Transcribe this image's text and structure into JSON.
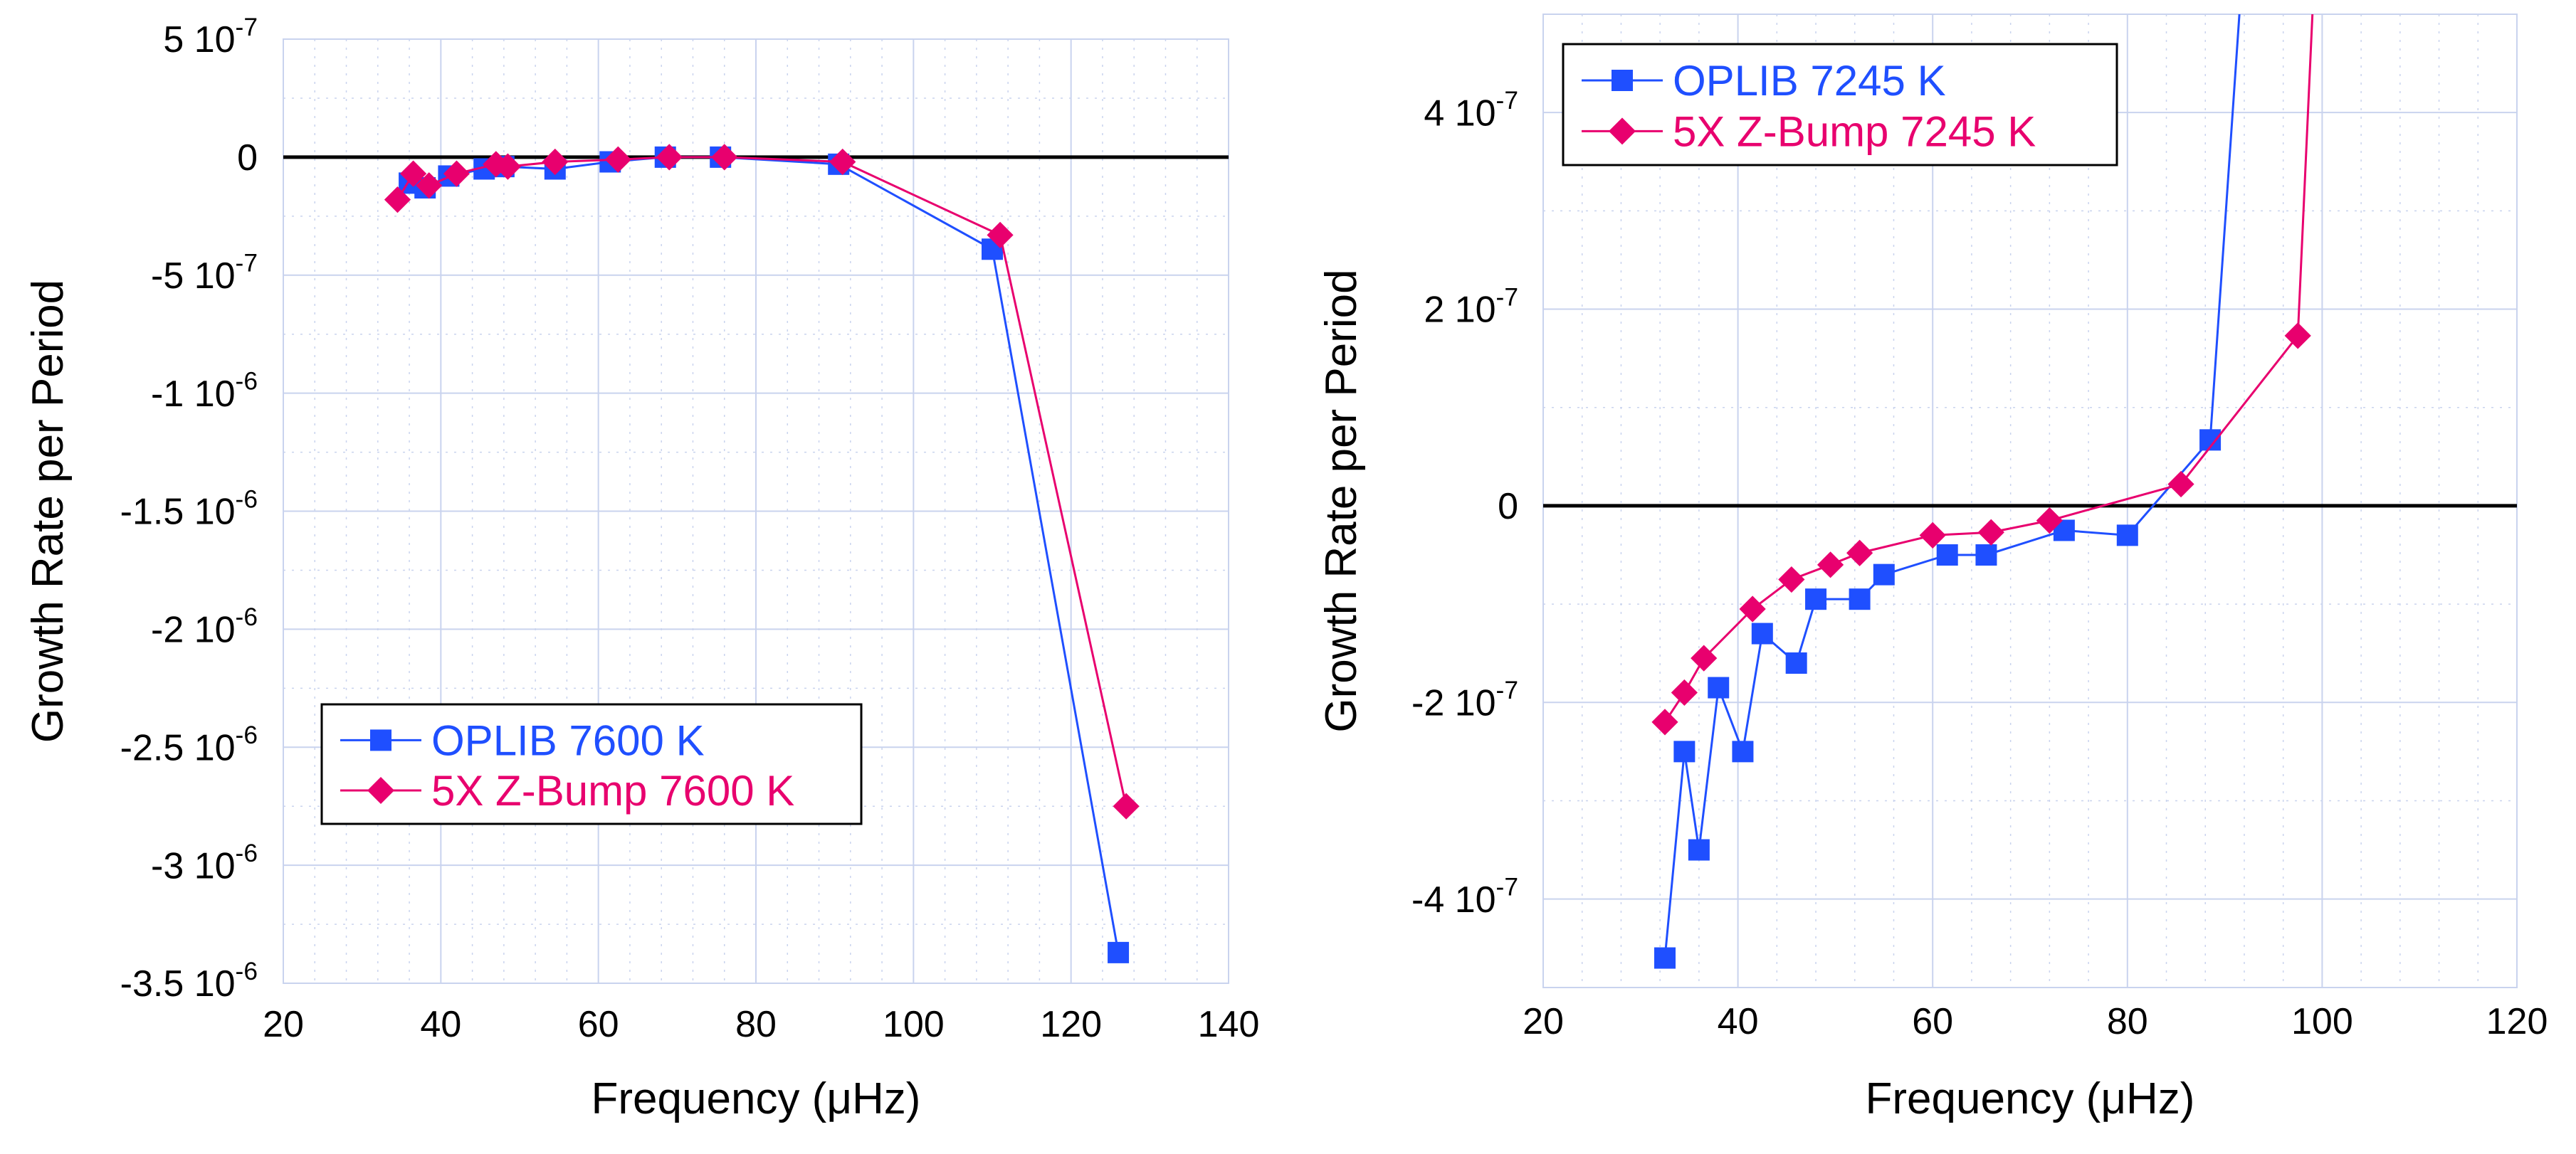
{
  "colors": {
    "oplib": "#1f4fff",
    "zbump": "#e8006e",
    "grid": "#c9d3ee",
    "axis": "#000000"
  },
  "chart_data": [
    {
      "type": "line",
      "title": "",
      "xlabel": "Frequency (μHz)",
      "ylabel": "Growth Rate per Period",
      "xlim": [
        20,
        140
      ],
      "ylim": [
        -3.5e-06,
        5e-07
      ],
      "xticks": [
        {
          "value": 20,
          "label": "20"
        },
        {
          "value": 40,
          "label": "40"
        },
        {
          "value": 60,
          "label": "60"
        },
        {
          "value": 80,
          "label": "80"
        },
        {
          "value": 100,
          "label": "100"
        },
        {
          "value": 120,
          "label": "120"
        },
        {
          "value": 140,
          "label": "140"
        }
      ],
      "yticks": [
        {
          "value": 5e-07,
          "mant": "5 10",
          "exp": "-7"
        },
        {
          "value": 0,
          "mant": "0",
          "exp": ""
        },
        {
          "value": -5e-07,
          "mant": "-5 10",
          "exp": "-7"
        },
        {
          "value": -1e-06,
          "mant": "-1 10",
          "exp": "-6"
        },
        {
          "value": -1.5e-06,
          "mant": "-1.5 10",
          "exp": "-6"
        },
        {
          "value": -2e-06,
          "mant": "-2 10",
          "exp": "-6"
        },
        {
          "value": -2.5e-06,
          "mant": "-2.5 10",
          "exp": "-6"
        },
        {
          "value": -3e-06,
          "mant": "-3 10",
          "exp": "-6"
        },
        {
          "value": -3.5e-06,
          "mant": "-3.5 10",
          "exp": "-6"
        }
      ],
      "legend": {
        "placement": "lower-left"
      },
      "series": [
        {
          "name": "OPLIB 7600 K",
          "marker": "square",
          "x": [
            36,
            38,
            41,
            45.5,
            48,
            54.5,
            61.5,
            68.5,
            75.5,
            90.5,
            110,
            126
          ],
          "y": [
            -1.1e-07,
            -1.3e-07,
            -8e-08,
            -5e-08,
            -4e-08,
            -5e-08,
            -2e-08,
            0,
            0,
            -3e-08,
            -3.9e-07,
            -3.37e-06
          ]
        },
        {
          "name": "5X Z-Bump 7600 K",
          "marker": "diamond",
          "x": [
            34.5,
            36.5,
            38.5,
            42,
            47,
            48.5,
            54.5,
            62.5,
            69,
            76,
            91,
            111,
            127
          ],
          "y": [
            -1.8e-07,
            -7e-08,
            -1.2e-07,
            -7e-08,
            -3e-08,
            -4e-08,
            -2e-08,
            -1e-08,
            0,
            0,
            -2e-08,
            -3.3e-07,
            -2.75e-06
          ]
        }
      ]
    },
    {
      "type": "line",
      "title": "",
      "xlabel": "Frequency (μHz)",
      "ylabel": "Growth Rate per Period",
      "xlim": [
        20,
        120
      ],
      "ylim": [
        -4.9e-07,
        5e-07
      ],
      "xticks": [
        {
          "value": 20,
          "label": "20"
        },
        {
          "value": 40,
          "label": "40"
        },
        {
          "value": 60,
          "label": "60"
        },
        {
          "value": 80,
          "label": "80"
        },
        {
          "value": 100,
          "label": "100"
        },
        {
          "value": 120,
          "label": "120"
        }
      ],
      "yticks": [
        {
          "value": 4e-07,
          "mant": "4 10",
          "exp": "-7"
        },
        {
          "value": 2e-07,
          "mant": "2 10",
          "exp": "-7"
        },
        {
          "value": 0,
          "mant": "0",
          "exp": ""
        },
        {
          "value": -2e-07,
          "mant": "-2 10",
          "exp": "-7"
        },
        {
          "value": -4e-07,
          "mant": "-4 10",
          "exp": "-7"
        }
      ],
      "legend": {
        "placement": "top-left"
      },
      "series": [
        {
          "name": "OPLIB 7245 K",
          "marker": "square",
          "x": [
            32.5,
            34.5,
            36,
            38,
            40.5,
            42.5,
            46,
            48,
            52.5,
            55,
            61.5,
            65.5,
            73.5,
            80,
            88.5,
            91.5
          ],
          "y": [
            -4.6e-07,
            -2.5e-07,
            -3.5e-07,
            -1.85e-07,
            -2.5e-07,
            -1.3e-07,
            -1.6e-07,
            -9.5e-08,
            -9.5e-08,
            -7e-08,
            -5e-08,
            -5e-08,
            -2.5e-08,
            -3e-08,
            6.7e-08,
            5e-07
          ],
          "marked_points": 15
        },
        {
          "name": "5X Z-Bump 7245 K",
          "marker": "diamond",
          "x": [
            32.5,
            34.5,
            36.5,
            41.5,
            45.5,
            49.5,
            52.5,
            60,
            66,
            72,
            85.5,
            97.5,
            99
          ],
          "y": [
            -2.2e-07,
            -1.9e-07,
            -1.55e-07,
            -1.05e-07,
            -7.5e-08,
            -6e-08,
            -4.8e-08,
            -3e-08,
            -2.7e-08,
            -1.5e-08,
            2.2e-08,
            1.73e-07,
            5e-07
          ],
          "marked_points": 12
        }
      ]
    }
  ]
}
